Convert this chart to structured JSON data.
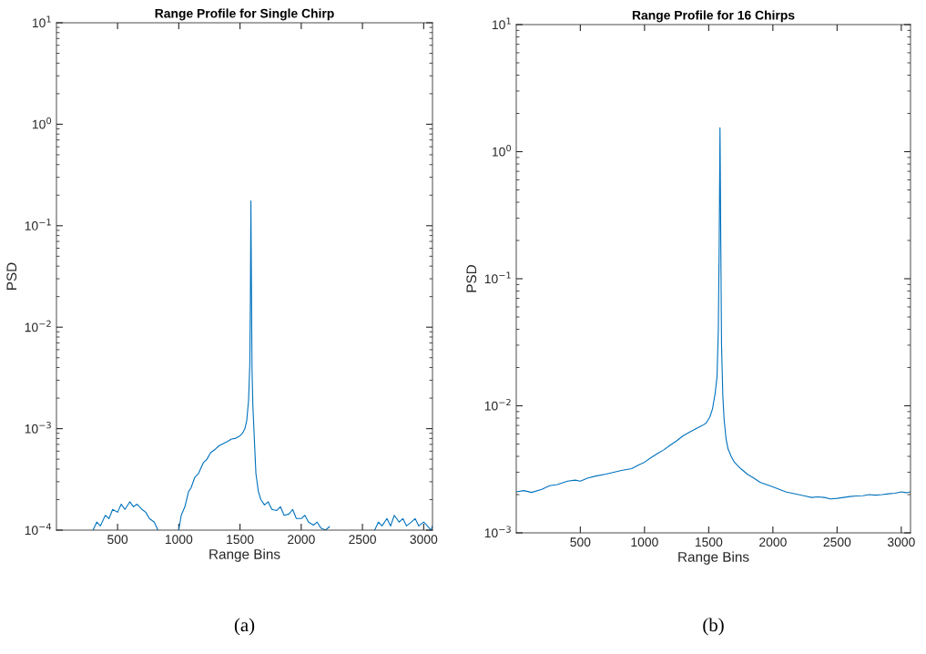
{
  "chart_data": [
    {
      "type": "line",
      "title": "Range Profile for Single Chirp",
      "xlabel": "Range Bins",
      "ylabel": "PSD",
      "log": "y",
      "grid": false,
      "legend": false,
      "xlim": [
        1,
        3072
      ],
      "xticks": [
        500,
        1000,
        1500,
        2000,
        2500,
        3000
      ],
      "ylim": [
        0.0001,
        10
      ],
      "yticks": [
        {
          "value": 0.0001,
          "label": "10$^{−4}$"
        },
        {
          "value": 0.001,
          "label": "10$^{−3}$"
        },
        {
          "value": 0.01,
          "label": "10$^{−2}$"
        },
        {
          "value": 0.1,
          "label": "10$^{−1}$"
        },
        {
          "value": 1,
          "label": "10$^{0}$"
        },
        {
          "value": 10,
          "label": "10$^{1}$"
        }
      ],
      "annotations": [
        "(a)"
      ],
      "series": [
        {
          "color": "#0072bd",
          "x": [
            300,
            330,
            360,
            400,
            430,
            460,
            500,
            530,
            560,
            600,
            630,
            660,
            700,
            730,
            760,
            800,
            830,
            850,
            1000,
            1020,
            1050,
            1080,
            1100,
            1130,
            1160,
            1200,
            1230,
            1260,
            1300,
            1330,
            1360,
            1400,
            1430,
            1460,
            1500,
            1520,
            1540,
            1555,
            1570,
            1580,
            1585,
            1589,
            1593,
            1598,
            1605,
            1615,
            1630,
            1650,
            1670,
            1700,
            1730,
            1760,
            1800,
            1830,
            1860,
            1900,
            1930,
            1960,
            2000,
            2030,
            2060,
            2100,
            2130,
            2160,
            2200,
            2230,
            2250,
            2600,
            2630,
            2660,
            2700,
            2730,
            2760,
            2800,
            2830,
            2860,
            2900,
            2930,
            2960,
            3000,
            3030,
            3060,
            3072
          ],
          "values": [
            0.0001,
            0.00012,
            0.00011,
            0.00014,
            0.00013,
            0.00016,
            0.00015,
            0.00018,
            0.00016,
            0.00019,
            0.00017,
            0.00018,
            0.00016,
            0.00015,
            0.00013,
            0.00012,
            0.0001,
            null,
            0.0001,
            0.00014,
            0.00017,
            0.00024,
            0.00026,
            0.00033,
            0.00036,
            0.00046,
            0.0005,
            0.00058,
            0.00063,
            0.00068,
            0.00071,
            0.00075,
            0.00079,
            0.0008,
            0.00085,
            0.0009,
            0.001,
            0.0012,
            0.0019,
            0.0043,
            0.02,
            0.176,
            0.03,
            0.004,
            0.0017,
            0.0009,
            0.00036,
            0.00024,
            0.0002,
            0.000177,
            0.00019,
            0.00016,
            0.000156,
            0.00017,
            0.00014,
            0.000144,
            0.00016,
            0.00013,
            0.00013,
            0.00014,
            0.00012,
            0.000112,
            0.00012,
            0.000105,
            0.0001,
            0.000108,
            null,
            0.0001,
            0.00012,
            0.00011,
            0.00013,
            0.00011,
            0.00014,
            0.00012,
            0.00013,
            0.00011,
            0.00012,
            0.00013,
            0.00011,
            0.00012,
            0.00011,
            0.0001,
            0.00011
          ]
        }
      ]
    },
    {
      "type": "line",
      "title": "Range Profile for 16 Chirps",
      "xlabel": "Range Bins",
      "ylabel": "PSD",
      "log": "y",
      "grid": false,
      "legend": false,
      "xlim": [
        1,
        3072
      ],
      "xticks": [
        500,
        1000,
        1500,
        2000,
        2500,
        3000
      ],
      "ylim": [
        0.001,
        10
      ],
      "yticks": [
        {
          "value": 0.001,
          "label": "10$^{−3}$"
        },
        {
          "value": 0.01,
          "label": "10$^{−2}$"
        },
        {
          "value": 0.1,
          "label": "10$^{−1}$"
        },
        {
          "value": 1,
          "label": "10$^{0}$"
        },
        {
          "value": 10,
          "label": "10$^{1}$"
        }
      ],
      "annotations": [
        "(b)"
      ],
      "series": [
        {
          "color": "#0072bd",
          "x": [
            1,
            60,
            120,
            200,
            260,
            320,
            400,
            460,
            500,
            560,
            620,
            700,
            760,
            820,
            900,
            950,
            1000,
            1050,
            1100,
            1150,
            1200,
            1250,
            1300,
            1350,
            1400,
            1450,
            1480,
            1510,
            1530,
            1550,
            1565,
            1575,
            1582,
            1588,
            1594,
            1600,
            1610,
            1620,
            1635,
            1650,
            1675,
            1700,
            1750,
            1800,
            1850,
            1900,
            1950,
            2000,
            2050,
            2100,
            2150,
            2200,
            2250,
            2300,
            2350,
            2400,
            2450,
            2500,
            2550,
            2600,
            2650,
            2700,
            2750,
            2800,
            2850,
            2900,
            2950,
            3000,
            3040,
            3072
          ],
          "values": [
            0.0021,
            0.00215,
            0.00208,
            0.0022,
            0.00235,
            0.0024,
            0.00255,
            0.0026,
            0.00255,
            0.0027,
            0.0028,
            0.0029,
            0.003,
            0.0031,
            0.0032,
            0.0034,
            0.0036,
            0.0039,
            0.0042,
            0.0045,
            0.0049,
            0.0053,
            0.0058,
            0.0062,
            0.0066,
            0.007,
            0.0073,
            0.0082,
            0.0095,
            0.0125,
            0.017,
            0.04,
            0.2,
            1.54,
            0.2,
            0.03,
            0.012,
            0.0078,
            0.0055,
            0.0046,
            0.004,
            0.0036,
            0.0032,
            0.0029,
            0.0027,
            0.0025,
            0.0024,
            0.0023,
            0.0022,
            0.0021,
            0.00205,
            0.002,
            0.00195,
            0.0019,
            0.00192,
            0.0019,
            0.00185,
            0.00187,
            0.0019,
            0.00193,
            0.00195,
            0.00196,
            0.002,
            0.00198,
            0.002,
            0.00203,
            0.00205,
            0.0021,
            0.00207,
            0.0021
          ]
        }
      ]
    }
  ]
}
